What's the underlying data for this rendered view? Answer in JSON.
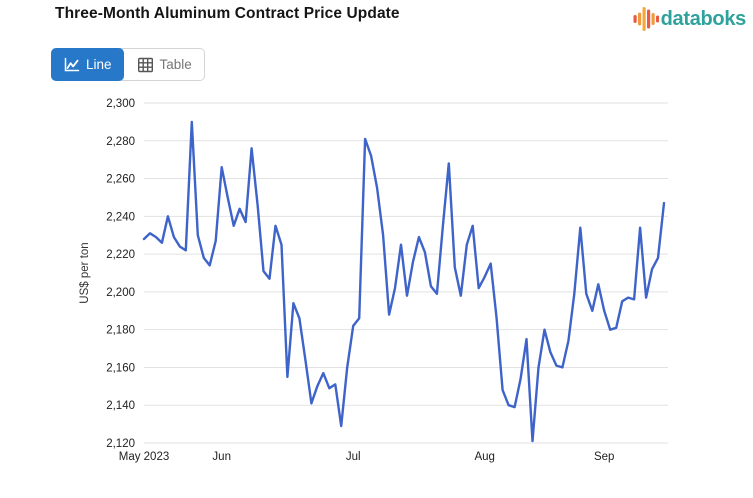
{
  "header": {
    "title": "Three-Month Aluminum Contract Price Update",
    "logo": {
      "text": "databoks",
      "text_color": "#2FA29B",
      "bar_colors": [
        "#E85A44",
        "#F09A3E",
        "#F5A93C",
        "#E85A44",
        "#F09A3E",
        "#E85A44"
      ]
    }
  },
  "toolbar": {
    "line_label": "Line",
    "table_label": "Table",
    "active_bg": "#2878C9",
    "inactive_text": "#767676"
  },
  "chart_data": {
    "type": "line",
    "title": "Three-Month Aluminum Contract Price Update",
    "ylabel": "US$ per ton",
    "xlabel": "",
    "ylim": [
      2120,
      2300
    ],
    "ytick_step": 20,
    "ytick_labels": [
      "2,120",
      "2,140",
      "2,160",
      "2,180",
      "2,200",
      "2,220",
      "2,240",
      "2,260",
      "2,280",
      "2,300"
    ],
    "x_tick_labels": [
      "May 2023",
      "Jun",
      "Jul",
      "Aug",
      "Sep"
    ],
    "x_tick_indices": [
      0,
      13,
      35,
      57,
      77
    ],
    "grid": true,
    "grid_color": "#E2E2E2",
    "line_color": "#3E63C9",
    "axis_text_color": "#222222",
    "values": [
      2228,
      2231,
      2229,
      2226,
      2240,
      2229,
      2224,
      2222,
      2290,
      2230,
      2218,
      2214,
      2227,
      2266,
      2250,
      2235,
      2244,
      2237,
      2276,
      2246,
      2211,
      2207,
      2235,
      2225,
      2155,
      2194,
      2186,
      2164,
      2141,
      2150,
      2157,
      2149,
      2151,
      2129,
      2160,
      2182,
      2186,
      2281,
      2272,
      2255,
      2230,
      2188,
      2202,
      2225,
      2198,
      2216,
      2229,
      2221,
      2203,
      2199,
      2235,
      2268,
      2213,
      2198,
      2225,
      2235,
      2202,
      2208,
      2215,
      2186,
      2148,
      2140,
      2139,
      2154,
      2175,
      2121,
      2160,
      2180,
      2168,
      2161,
      2160,
      2174,
      2199,
      2234,
      2199,
      2190,
      2204,
      2190,
      2180,
      2181,
      2195,
      2197,
      2196,
      2234,
      2197,
      2212,
      2218,
      2247
    ]
  }
}
